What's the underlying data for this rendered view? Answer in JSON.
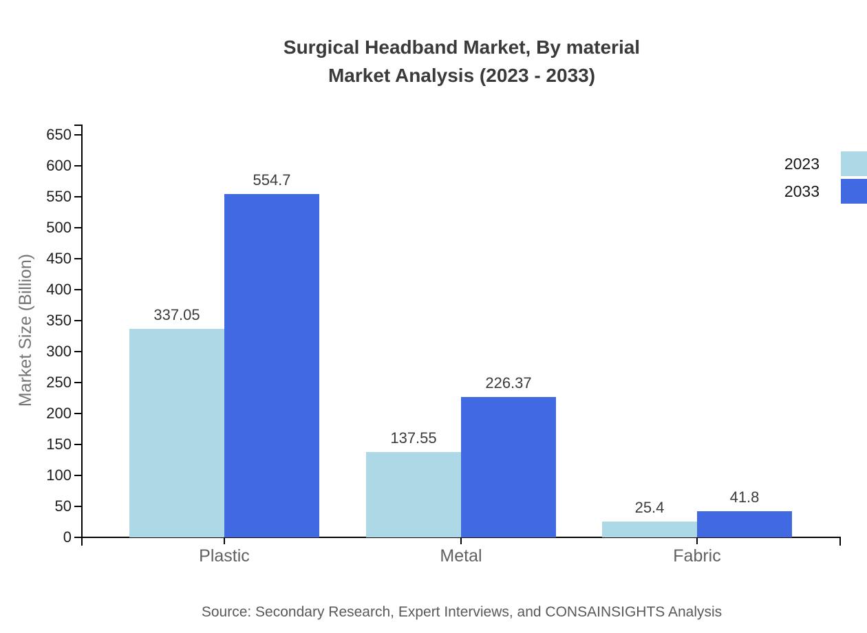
{
  "title": {
    "line1": "Surgical Headband Market, By material",
    "line2": "Market Analysis (2023 - 2033)"
  },
  "source": "Source: Secondary Research, Expert Interviews, and CONSAINSIGHTS Analysis",
  "colors": {
    "series_2023": "#ADD8E6",
    "series_2033": "#4169E1",
    "title_text": "#3A3A3A",
    "axis_line": "#000000",
    "tick_label": "#1C1C1C",
    "value_label": "#3A3A3A",
    "category_label": "#606060",
    "axis_title": "#757575",
    "source_text": "#595959",
    "legend_text": "#161616"
  },
  "chart_data": {
    "type": "bar",
    "title": "Surgical Headband Market, By material Market Analysis (2023 - 2033)",
    "categories": [
      "Plastic",
      "Metal",
      "Fabric"
    ],
    "series": [
      {
        "name": "2023",
        "color": "#ADD8E6",
        "values": [
          337.05,
          137.55,
          25.4
        ]
      },
      {
        "name": "2033",
        "color": "#4169E1",
        "values": [
          554.7,
          226.37,
          41.8
        ]
      }
    ],
    "value_labels": {
      "2023": [
        "337.05",
        "137.55",
        "25.4"
      ],
      "2033": [
        "554.7",
        "226.37",
        "41.8"
      ]
    },
    "xlabel": "",
    "ylabel": "Market Size (Billion)",
    "ylim": [
      0,
      650
    ],
    "ytick_step": 50,
    "ytick_labels": [
      "0",
      "50",
      "100",
      "150",
      "200",
      "250",
      "300",
      "350",
      "400",
      "450",
      "500",
      "550",
      "600",
      "650"
    ],
    "grid": false,
    "legend_position": "top-right"
  }
}
